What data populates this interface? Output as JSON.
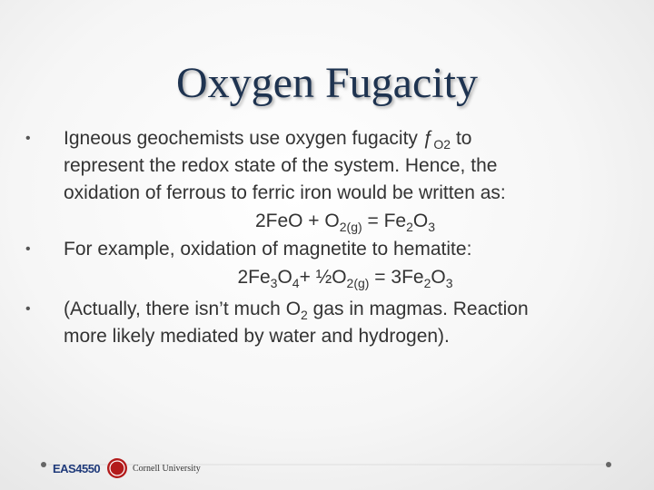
{
  "title": "Oxygen Fugacity",
  "bullets": [
    {
      "lines": [
        [
          {
            "text": "Igneous geochemists use oxygen fugacity ƒ"
          },
          {
            "sub": "O2"
          },
          {
            "text": " to"
          }
        ],
        [
          {
            "text": "represent the redox state of the system. Hence, the"
          }
        ],
        [
          {
            "text": "oxidation of ferrous to ferric iron would be written as:"
          }
        ]
      ],
      "equation": [
        {
          "text": "2FeO + O"
        },
        {
          "sub": "2(g)"
        },
        {
          "text": " = Fe"
        },
        {
          "sub": "2"
        },
        {
          "text": "O"
        },
        {
          "sub": "3"
        }
      ]
    },
    {
      "lines": [
        [
          {
            "text": "For example, oxidation of magnetite to hematite:"
          }
        ]
      ],
      "equation": [
        {
          "text": "2Fe"
        },
        {
          "sub": "3"
        },
        {
          "text": "O"
        },
        {
          "sub": "4"
        },
        {
          "text": "+ ½O"
        },
        {
          "sub": "2(g)"
        },
        {
          "text": " = 3Fe"
        },
        {
          "sub": "2"
        },
        {
          "text": "O"
        },
        {
          "sub": "3"
        }
      ]
    },
    {
      "lines": [
        [
          {
            "text": "(Actually, there isn’t much O"
          },
          {
            "sub": "2"
          },
          {
            "text": " gas in magmas. Reaction"
          }
        ],
        [
          {
            "text": "more likely mediated by water and hydrogen)."
          }
        ]
      ]
    }
  ],
  "footer": {
    "course": "EAS4550",
    "university": "Cornell University"
  }
}
